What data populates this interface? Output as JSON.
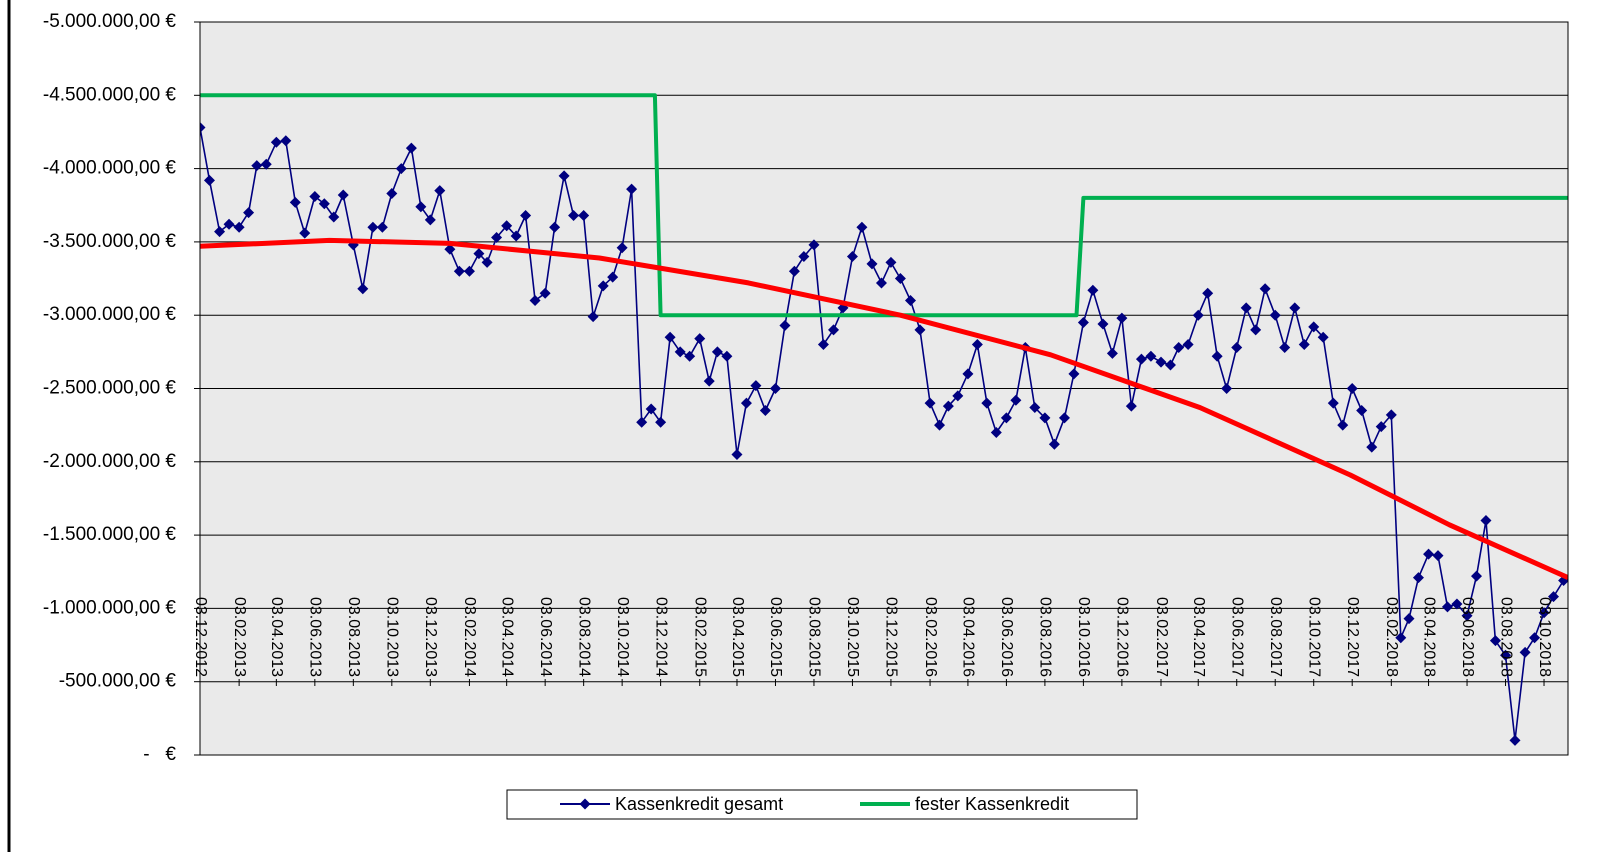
{
  "chart_data": {
    "type": "line",
    "grid": true,
    "legend": "bottom",
    "background": "#eaeaea",
    "ylim": [
      0,
      -5000000
    ],
    "yticks": [
      {
        "value": -5000000,
        "label": "-5.000.000,00 €"
      },
      {
        "value": -4500000,
        "label": "-4.500.000,00 €"
      },
      {
        "value": -4000000,
        "label": "-4.000.000,00 €"
      },
      {
        "value": -3500000,
        "label": "-3.500.000,00 €"
      },
      {
        "value": -3000000,
        "label": "-3.000.000,00 €"
      },
      {
        "value": -2500000,
        "label": "-2.500.000,00 €"
      },
      {
        "value": -2000000,
        "label": "-2.000.000,00 €"
      },
      {
        "value": -1500000,
        "label": "-1.500.000,00 €"
      },
      {
        "value": -1000000,
        "label": "-1.000.000,00 €"
      },
      {
        "value": -500000,
        "label": "-500.000,00 €"
      },
      {
        "value": 0,
        "label": "-   €"
      }
    ],
    "xlim": [
      "03.12.2012",
      "10.11.2018"
    ],
    "xticks": [
      "03.12.2012",
      "03.02.2013",
      "03.04.2013",
      "03.06.2013",
      "03.08.2013",
      "03.10.2013",
      "03.12.2013",
      "03.02.2014",
      "03.04.2014",
      "03.06.2014",
      "03.08.2014",
      "03.10.2014",
      "03.12.2014",
      "03.02.2015",
      "03.04.2015",
      "03.06.2015",
      "03.08.2015",
      "03.10.2015",
      "03.12.2015",
      "03.02.2016",
      "03.04.2016",
      "03.06.2016",
      "03.08.2016",
      "03.10.2016",
      "03.12.2016",
      "03.02.2017",
      "03.04.2017",
      "03.06.2017",
      "03.08.2017",
      "03.10.2017",
      "03.12.2017",
      "03.02.2018",
      "03.04.2018",
      "03.06.2018",
      "03.08.2018",
      "03.10.2018"
    ],
    "x": [
      "03.12.2012",
      "18.12.2012",
      "03.01.2013",
      "18.01.2013",
      "03.02.2013",
      "18.02.2013",
      "03.03.2013",
      "18.03.2013",
      "03.04.2013",
      "18.04.2013",
      "03.05.2013",
      "18.05.2013",
      "03.06.2013",
      "18.06.2013",
      "03.07.2013",
      "18.07.2013",
      "03.08.2013",
      "18.08.2013",
      "03.09.2013",
      "18.09.2013",
      "03.10.2013",
      "18.10.2013",
      "03.11.2013",
      "18.11.2013",
      "03.12.2013",
      "18.12.2013",
      "03.01.2014",
      "18.01.2014",
      "03.02.2014",
      "18.02.2014",
      "03.03.2014",
      "18.03.2014",
      "03.04.2014",
      "18.04.2014",
      "03.05.2014",
      "18.05.2014",
      "03.06.2014",
      "18.06.2014",
      "03.07.2014",
      "18.07.2014",
      "03.08.2014",
      "18.08.2014",
      "03.09.2014",
      "18.09.2014",
      "03.10.2014",
      "18.10.2014",
      "03.11.2014",
      "18.11.2014",
      "03.12.2014",
      "18.12.2014",
      "03.01.2015",
      "18.01.2015",
      "03.02.2015",
      "18.02.2015",
      "03.03.2015",
      "18.03.2015",
      "03.04.2015",
      "18.04.2015",
      "03.05.2015",
      "18.05.2015",
      "03.06.2015",
      "18.06.2015",
      "03.07.2015",
      "18.07.2015",
      "03.08.2015",
      "18.08.2015",
      "03.09.2015",
      "18.09.2015",
      "03.10.2015",
      "18.10.2015",
      "03.11.2015",
      "18.11.2015",
      "03.12.2015",
      "18.12.2015",
      "03.01.2016",
      "18.01.2016",
      "03.02.2016",
      "18.02.2016",
      "03.03.2016",
      "18.03.2016",
      "03.04.2016",
      "18.04.2016",
      "03.05.2016",
      "18.05.2016",
      "03.06.2016",
      "18.06.2016",
      "03.07.2016",
      "18.07.2016",
      "03.08.2016",
      "18.08.2016",
      "03.09.2016",
      "18.09.2016",
      "03.10.2016",
      "18.10.2016",
      "03.11.2016",
      "18.11.2016",
      "03.12.2016",
      "18.12.2016",
      "03.01.2017",
      "18.01.2017",
      "03.02.2017",
      "18.02.2017",
      "03.03.2017",
      "18.03.2017",
      "03.04.2017",
      "18.04.2017",
      "03.05.2017",
      "18.05.2017",
      "03.06.2017",
      "18.06.2017",
      "03.07.2017",
      "18.07.2017",
      "03.08.2017",
      "18.08.2017",
      "03.09.2017",
      "18.09.2017",
      "03.10.2017",
      "18.10.2017",
      "03.11.2017",
      "18.11.2017",
      "03.12.2017",
      "18.12.2017",
      "03.01.2018",
      "18.01.2018",
      "03.02.2018",
      "18.02.2018",
      "03.03.2018",
      "18.03.2018",
      "03.04.2018",
      "18.04.2018",
      "03.05.2018",
      "18.05.2018",
      "03.06.2018",
      "18.06.2018",
      "03.07.2018",
      "18.07.2018",
      "03.08.2018",
      "18.08.2018",
      "03.09.2018",
      "18.09.2018",
      "03.10.2018",
      "18.10.2018",
      "03.11.2018"
    ],
    "series": [
      {
        "name": "Kassenkredit gesamt",
        "color": "#000080",
        "marker": "diamond",
        "values": [
          -4280000,
          -3920000,
          -3570000,
          -3620000,
          -3600000,
          -3700000,
          -4020000,
          -4030000,
          -4180000,
          -4190000,
          -3770000,
          -3560000,
          -3810000,
          -3760000,
          -3670000,
          -3820000,
          -3480000,
          -3180000,
          -3600000,
          -3600000,
          -3830000,
          -4000000,
          -4140000,
          -3740000,
          -3650000,
          -3850000,
          -3450000,
          -3300000,
          -3300000,
          -3420000,
          -3360000,
          -3530000,
          -3610000,
          -3540000,
          -3680000,
          -3100000,
          -3150000,
          -3600000,
          -3950000,
          -3680000,
          -3680000,
          -2990000,
          -3200000,
          -3260000,
          -3460000,
          -3860000,
          -2270000,
          -2360000,
          -2270000,
          -2850000,
          -2750000,
          -2720000,
          -2840000,
          -2550000,
          -2750000,
          -2720000,
          -2050000,
          -2400000,
          -2520000,
          -2350000,
          -2500000,
          -2930000,
          -3300000,
          -3400000,
          -3480000,
          -2800000,
          -2900000,
          -3050000,
          -3400000,
          -3600000,
          -3350000,
          -3220000,
          -3360000,
          -3250000,
          -3100000,
          -2900000,
          -2400000,
          -2250000,
          -2380000,
          -2450000,
          -2600000,
          -2800000,
          -2400000,
          -2200000,
          -2300000,
          -2420000,
          -2780000,
          -2370000,
          -2300000,
          -2120000,
          -2300000,
          -2600000,
          -2950000,
          -3170000,
          -2940000,
          -2740000,
          -2980000,
          -2380000,
          -2700000,
          -2720000,
          -2680000,
          -2660000,
          -2780000,
          -2800000,
          -3000000,
          -3150000,
          -2720000,
          -2500000,
          -2780000,
          -3050000,
          -2900000,
          -3180000,
          -3000000,
          -2780000,
          -3050000,
          -2800000,
          -2920000,
          -2850000,
          -2400000,
          -2250000,
          -2500000,
          -2350000,
          -2100000,
          -2240000,
          -2320000,
          -800000,
          -930000,
          -1210000,
          -1370000,
          -1360000,
          -1010000,
          -1030000,
          -950000,
          -1220000,
          -1600000,
          -780000,
          -680000,
          -100000,
          -700000,
          -800000,
          -970000,
          -1080000,
          -1190000
        ]
      },
      {
        "name": "fester Kassenkredit",
        "color": "#00b050",
        "x": [
          "03.12.2012",
          "24.11.2014",
          "03.12.2014",
          "22.09.2016",
          "03.10.2016",
          "10.11.2018"
        ],
        "values": [
          -4500000,
          -4500000,
          -3000000,
          -3000000,
          -3800000,
          -3800000
        ]
      },
      {
        "color": "#ff0000",
        "x": [
          "03.12.2012",
          "26.06.2013",
          "03.01.2014",
          "28.08.2014",
          "21.04.2015",
          "18.12.2015",
          "12.08.2016",
          "06.04.2017",
          "30.11.2017",
          "06.05.2018",
          "10.11.2018"
        ],
        "values": [
          -3470000,
          -3510000,
          -3490000,
          -3390000,
          -3220000,
          -3000000,
          -2730000,
          -2370000,
          -1910000,
          -1570000,
          -1210000
        ]
      }
    ]
  }
}
